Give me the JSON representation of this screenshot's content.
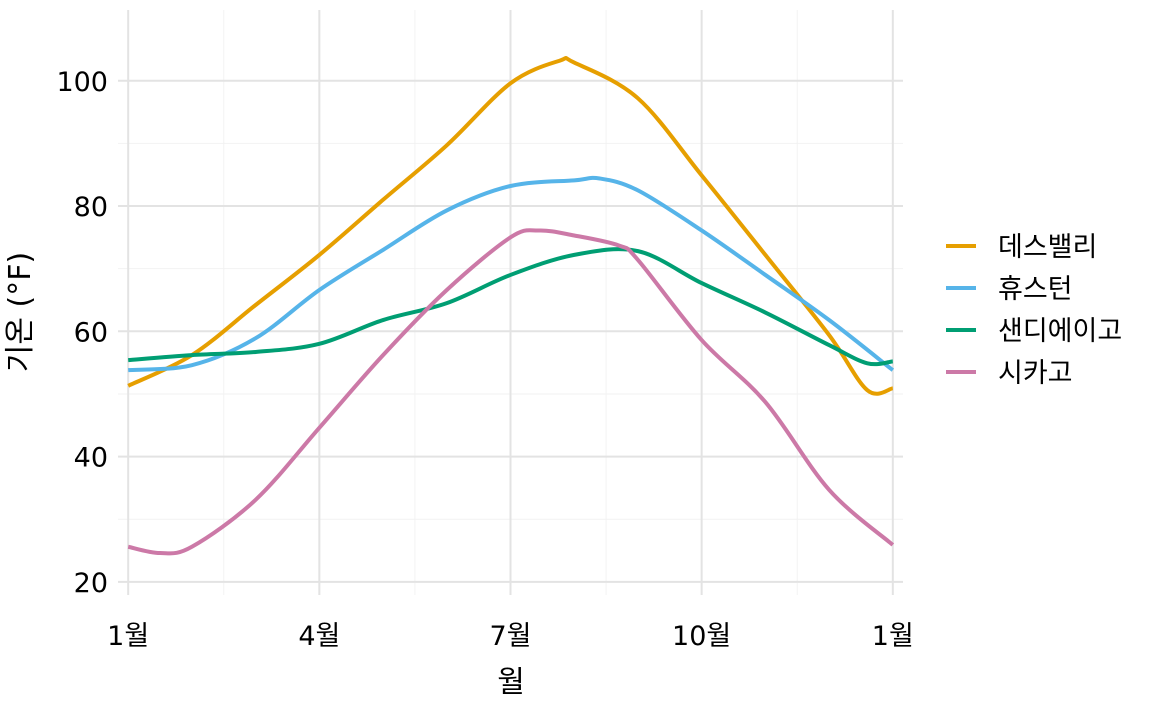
{
  "chart_data": {
    "type": "line",
    "title": "",
    "xlabel": "월",
    "ylabel": "기온 (°F)",
    "x_unit": "month (0 = Jan 1, 12 = next Jan 1)",
    "xlim": [
      -0.16,
      12.16
    ],
    "ylim": [
      17.9,
      111.3
    ],
    "xticks": [
      {
        "value": 0,
        "label": "1월"
      },
      {
        "value": 3,
        "label": "4월"
      },
      {
        "value": 6,
        "label": "7월"
      },
      {
        "value": 9,
        "label": "10월"
      },
      {
        "value": 12,
        "label": "1월"
      }
    ],
    "yticks": [
      {
        "value": 20,
        "label": "20"
      },
      {
        "value": 40,
        "label": "40"
      },
      {
        "value": 60,
        "label": "60"
      },
      {
        "value": 80,
        "label": "80"
      },
      {
        "value": 100,
        "label": "100"
      }
    ],
    "grid": true,
    "legend_position": "right",
    "series": [
      {
        "name": "데스밸리",
        "color": "#E69F00",
        "x": [
          0,
          1,
          2,
          3,
          4,
          5,
          6,
          6.77,
          7,
          8,
          9,
          10,
          11,
          11.6,
          12
        ],
        "y": [
          51.3,
          56.2,
          64.2,
          72.2,
          81,
          89.7,
          99.6,
          103.2,
          102.9,
          97.2,
          84.9,
          72.2,
          59.4,
          50.6,
          50.9
        ]
      },
      {
        "name": "휴스턴",
        "color": "#56B4E9",
        "x": [
          0,
          1,
          2,
          3,
          4,
          5,
          6,
          7,
          7.4,
          8,
          9,
          10,
          11,
          12
        ],
        "y": [
          53.8,
          54.6,
          58.9,
          66.6,
          73,
          79.3,
          83.2,
          84.1,
          84.4,
          82.5,
          76.1,
          69,
          61.8,
          53.8
        ]
      },
      {
        "name": "샌디에이고",
        "color": "#009E73",
        "x": [
          0,
          1,
          2,
          3,
          4,
          5,
          6,
          7,
          8,
          9,
          10,
          11,
          11.6,
          12
        ],
        "y": [
          55.4,
          56.2,
          56.7,
          58,
          61.8,
          64.5,
          69,
          72.2,
          72.8,
          67.7,
          63,
          57.8,
          54.9,
          55.2
        ]
      },
      {
        "name": "시카고",
        "color": "#CC79A7",
        "x": [
          0,
          0.5,
          1,
          2,
          3,
          4,
          5,
          6,
          6.45,
          7,
          7.7,
          8,
          9,
          10,
          11,
          12
        ],
        "y": [
          25.6,
          24.6,
          25.6,
          33.1,
          44.6,
          56.2,
          66.6,
          75,
          76.1,
          75.3,
          73.7,
          71.4,
          58.6,
          48.7,
          34.7,
          25.9
        ]
      }
    ]
  }
}
